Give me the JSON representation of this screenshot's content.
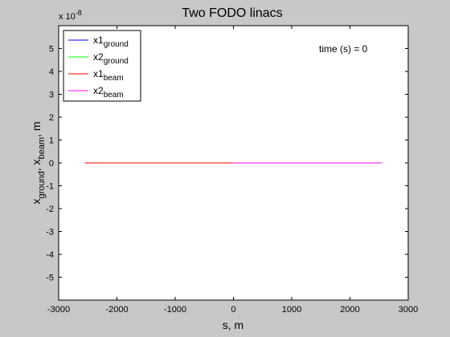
{
  "chart_data": {
    "type": "line",
    "title": "Two FODO linacs",
    "xlabel": "s, m",
    "ylabel": {
      "parts": [
        {
          "text": "x",
          "sub": false
        },
        {
          "text": "ground",
          "sub": true
        },
        {
          "text": ", x",
          "sub": false
        },
        {
          "text": "beam",
          "sub": true
        },
        {
          "text": ", m",
          "sub": false
        }
      ]
    },
    "y_multiplier": {
      "base": "x 10",
      "exp": "-8"
    },
    "xlim": [
      -3000,
      3000
    ],
    "ylim": [
      -6,
      6
    ],
    "xticks": [
      -3000,
      -2000,
      -1000,
      0,
      1000,
      2000,
      3000
    ],
    "yticks": [
      -5,
      -4,
      -3,
      -2,
      -1,
      0,
      1,
      2,
      3,
      4,
      5
    ],
    "xtick_labels": [
      "-3000",
      "-2000",
      "-1000",
      "0",
      "1000",
      "2000",
      "3000"
    ],
    "ytick_labels": [
      "-5",
      "-4",
      "-3",
      "-2",
      "-1",
      "0",
      "1",
      "2",
      "3",
      "4",
      "5"
    ],
    "grid": false,
    "legend_position": "top-left",
    "annotation": "time (s) = 0",
    "series": [
      {
        "base": "x1",
        "sub": "ground",
        "color": "#0000ff",
        "x": [
          -2550,
          0
        ],
        "y": [
          0,
          0
        ]
      },
      {
        "base": "x2",
        "sub": "ground",
        "color": "#00ff00",
        "x": [
          0,
          2550
        ],
        "y": [
          0,
          0
        ]
      },
      {
        "base": "x1",
        "sub": "beam",
        "color": "#ff0000",
        "x": [
          -2550,
          0
        ],
        "y": [
          0,
          0
        ]
      },
      {
        "base": "x2",
        "sub": "beam",
        "color": "#ff00ff",
        "x": [
          0,
          2550
        ],
        "y": [
          0,
          0
        ]
      }
    ]
  }
}
